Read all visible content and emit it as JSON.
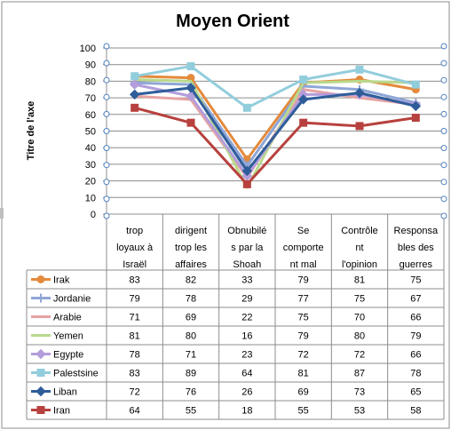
{
  "chart_data": {
    "type": "line",
    "title": "Moyen Orient",
    "ylabel": "Titre de l'axe",
    "xlabel": "",
    "ylim": [
      0,
      100
    ],
    "y_ticks": [
      "0",
      "10",
      "20",
      "30",
      "40",
      "50",
      "60",
      "70",
      "80",
      "90",
      "100"
    ],
    "grid": true,
    "legend": "data-table",
    "categories": [
      "trop loyaux à Israël",
      "dirigent trop les affaires",
      "Obnubilés par la Shoah",
      "Se comportent mal",
      "Contrôlent l'opinion",
      "Responsables des guerres"
    ],
    "category_lines": [
      [
        "trop",
        "loyaux à",
        "Israël"
      ],
      [
        "dirigent",
        "trop les",
        "affaires"
      ],
      [
        "Obnubilé",
        "s par la",
        "Shoah"
      ],
      [
        "Se",
        "comporte",
        "nt mal"
      ],
      [
        "Contrôle",
        "nt",
        "l'opinion"
      ],
      [
        "Responsa",
        "bles des",
        "guerres"
      ]
    ],
    "series": [
      {
        "name": "Irak",
        "values": [
          83,
          82,
          33,
          79,
          81,
          75
        ],
        "color": "#e48a3c",
        "marker": "circle"
      },
      {
        "name": "Jordanie",
        "values": [
          79,
          78,
          29,
          77,
          75,
          67
        ],
        "color": "#8fa6d6",
        "marker": "plus"
      },
      {
        "name": "Arabie",
        "values": [
          71,
          69,
          22,
          75,
          70,
          66
        ],
        "color": "#e6a3a3",
        "marker": "none"
      },
      {
        "name": "Yemen",
        "values": [
          81,
          80,
          16,
          79,
          80,
          79
        ],
        "color": "#b9d98c",
        "marker": "none"
      },
      {
        "name": "Egypte",
        "values": [
          78,
          71,
          23,
          72,
          72,
          66
        ],
        "color": "#b39ddb",
        "marker": "diamond"
      },
      {
        "name": "Palestsine",
        "values": [
          83,
          89,
          64,
          81,
          87,
          78
        ],
        "color": "#92cddc",
        "marker": "square"
      },
      {
        "name": "Liban",
        "values": [
          72,
          76,
          26,
          69,
          73,
          65
        ],
        "color": "#2f5d9a",
        "marker": "diamond"
      },
      {
        "name": "Iran",
        "values": [
          64,
          55,
          18,
          55,
          53,
          58
        ],
        "color": "#b7413e",
        "marker": "square"
      }
    ]
  }
}
